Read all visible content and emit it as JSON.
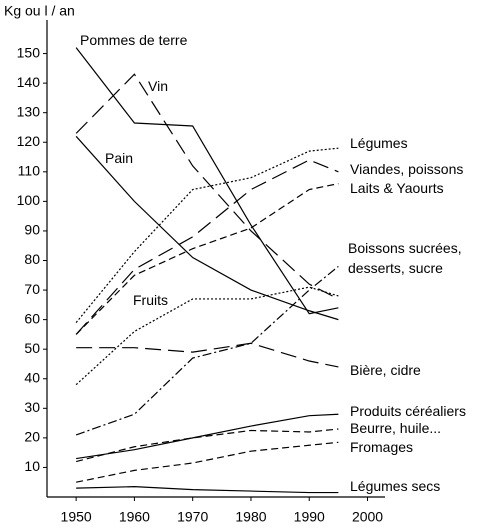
{
  "chart_data": {
    "type": "line",
    "y_label": "Kg ou l / an",
    "xlim": [
      1945,
      2003
    ],
    "ylim": [
      0,
      160
    ],
    "xticks": [
      1950,
      1960,
      1970,
      1980,
      1990,
      2000
    ],
    "yticks": [
      10,
      20,
      30,
      40,
      50,
      60,
      70,
      80,
      90,
      100,
      110,
      120,
      130,
      140,
      150
    ],
    "x": [
      1950,
      1960,
      1970,
      1980,
      1990,
      1995
    ],
    "series": [
      {
        "name": "Pommes de terre",
        "color": "#000000",
        "dash": "solid",
        "values": [
          152,
          126.5,
          125.5,
          92,
          62,
          64
        ]
      },
      {
        "name": "Vin",
        "color": "#000000",
        "dash": "longdash",
        "values": [
          123,
          143,
          112,
          90,
          72,
          67
        ]
      },
      {
        "name": "Pain",
        "color": "#000000",
        "dash": "solid",
        "values": [
          122,
          100,
          81,
          70,
          63,
          60
        ]
      },
      {
        "name": "Fruits",
        "color": "#000000",
        "dash": "dotted",
        "values": [
          38,
          56,
          67,
          67,
          71,
          68
        ]
      },
      {
        "name": "Légumes",
        "color": "#000000",
        "dash": "dotted",
        "values": [
          59,
          83,
          104,
          108,
          117,
          118
        ]
      },
      {
        "name": "Viandes, poissons",
        "color": "#000000",
        "dash": "longdash",
        "values": [
          55,
          77,
          88,
          104,
          114,
          110
        ]
      },
      {
        "name": "Laits & Yaourts",
        "color": "#000000",
        "dash": "dashed",
        "values": [
          55,
          75,
          84,
          91,
          104,
          106
        ]
      },
      {
        "name": "Boissons sucrées, desserts, sucre",
        "color": "#000000",
        "dash": "dashdot",
        "values": [
          21,
          28,
          47,
          52,
          70,
          78
        ]
      },
      {
        "name": "Bière, cidre",
        "color": "#000000",
        "dash": "longdash",
        "values": [
          50.5,
          50.5,
          49,
          52,
          46,
          44
        ]
      },
      {
        "name": "Produits céréaliers",
        "color": "#000000",
        "dash": "solid",
        "values": [
          13,
          16,
          20,
          24,
          27.5,
          28
        ]
      },
      {
        "name": "Beurre, huile...",
        "color": "#000000",
        "dash": "dashed",
        "values": [
          12,
          17,
          20,
          22.5,
          22,
          23
        ]
      },
      {
        "name": "Fromages",
        "color": "#000000",
        "dash": "dashed",
        "values": [
          5,
          9,
          11.5,
          15.5,
          17.5,
          18.5
        ]
      },
      {
        "name": "Légumes secs",
        "color": "#000000",
        "dash": "solid",
        "values": [
          3,
          3.5,
          2.5,
          2,
          1.5,
          1.5
        ]
      }
    ]
  }
}
